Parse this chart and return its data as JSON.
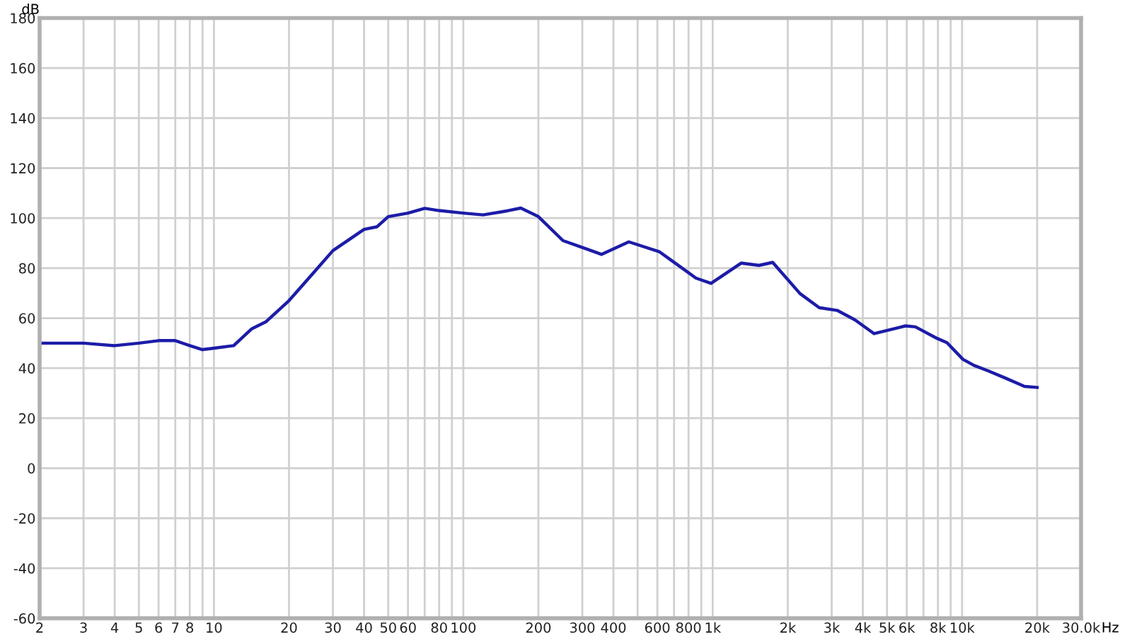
{
  "chart_data": {
    "type": "line",
    "xlabel": "Hz",
    "ylabel": "dB",
    "log": "x",
    "xlim": [
      2,
      30000
    ],
    "ylim": [
      -60,
      180
    ],
    "xticks": [
      2,
      3,
      4,
      5,
      6,
      7,
      8,
      {
        "value": 9,
        "label": null
      },
      10,
      20,
      30,
      40,
      50,
      60,
      {
        "value": 70,
        "label": null
      },
      80,
      {
        "value": 90,
        "label": null
      },
      100,
      200,
      300,
      400,
      {
        "value": 500,
        "label": null
      },
      600,
      {
        "value": 700,
        "label": null
      },
      800,
      {
        "value": 900,
        "label": null
      },
      {
        "value": 1000,
        "label": "1k"
      },
      {
        "value": 2000,
        "label": "2k"
      },
      {
        "value": 3000,
        "label": "3k"
      },
      {
        "value": 4000,
        "label": "4k"
      },
      {
        "value": 5000,
        "label": "5k"
      },
      {
        "value": 6000,
        "label": "6k"
      },
      {
        "value": 7000,
        "label": null
      },
      {
        "value": 8000,
        "label": "8k"
      },
      {
        "value": 9000,
        "label": null
      },
      {
        "value": 10000,
        "label": "10k"
      },
      {
        "value": 20000,
        "label": "20k"
      },
      {
        "value": 30000,
        "label": "30.0k"
      }
    ],
    "yticks": [
      -60,
      -40,
      -20,
      0,
      20,
      40,
      60,
      80,
      100,
      120,
      140,
      160,
      180
    ],
    "grid": true,
    "marker": "none",
    "line_style": "solid",
    "series": [
      {
        "color": "#1c1ca8",
        "x": [
          2,
          3,
          4,
          5,
          6,
          7,
          8,
          9,
          10,
          12,
          14.2,
          16.2,
          20,
          25,
          30,
          40,
          45,
          50,
          60,
          70,
          80,
          100,
          120,
          150,
          170,
          200,
          251,
          311,
          358,
          461,
          610,
          692,
          857,
          985,
          1300,
          1534,
          1740,
          2240,
          2674,
          3155,
          3720,
          4440,
          5930,
          6500,
          7940,
          8700,
          10090,
          11170,
          12670,
          14950,
          17800,
          20000
        ],
        "values": [
          50,
          50,
          49,
          50,
          51,
          51,
          49,
          47.4,
          48,
          49,
          55.8,
          58.6,
          67,
          78,
          87,
          95.5,
          96.5,
          100.6,
          102,
          103.9,
          103,
          102,
          101.3,
          102.9,
          104,
          100.6,
          91,
          87.7,
          85.5,
          90.5,
          86.6,
          82.7,
          76,
          73.9,
          82,
          81.1,
          82.3,
          69.8,
          64.2,
          63.1,
          59.3,
          53.8,
          56.9,
          56.5,
          51.9,
          50.2,
          43.5,
          41.1,
          39,
          36,
          32.7,
          32.3
        ]
      }
    ]
  }
}
